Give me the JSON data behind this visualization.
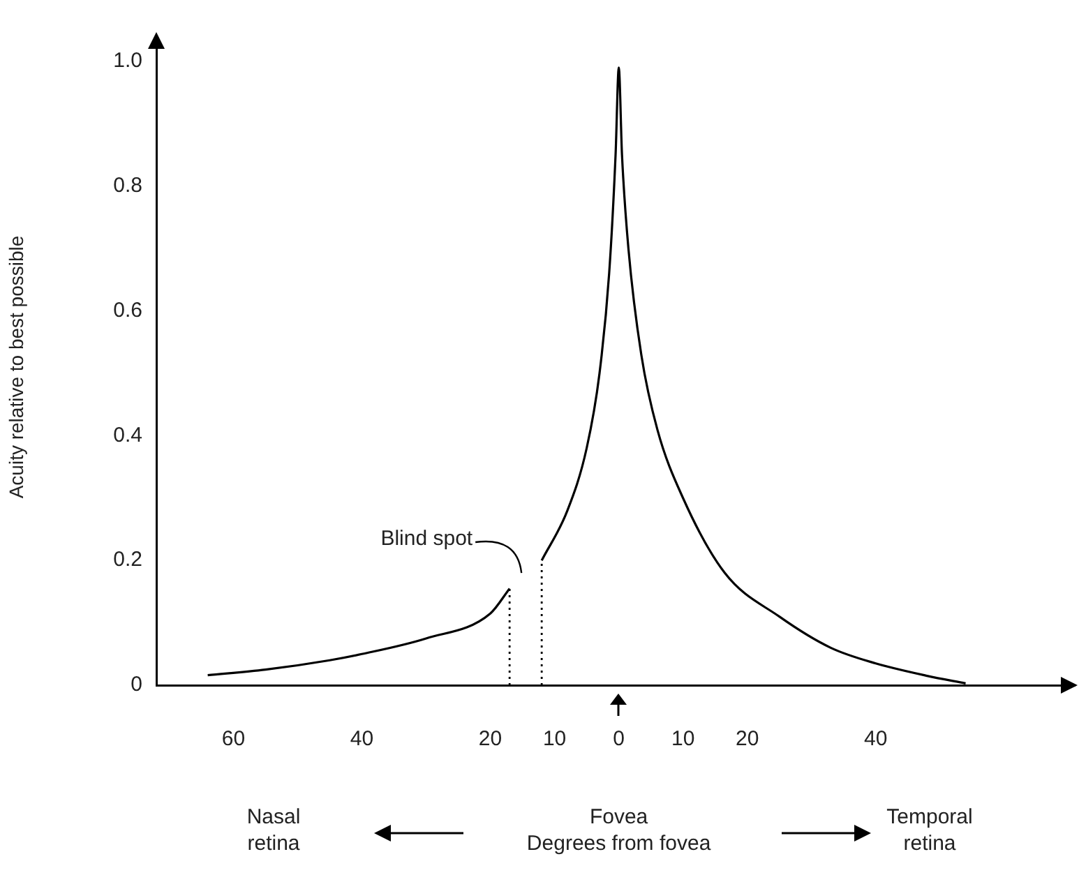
{
  "chart_data": {
    "type": "line",
    "xlabel": "Degrees from fovea",
    "ylabel": "Acuity relative to best possible",
    "xlim": [
      -72,
      71
    ],
    "xticks": [
      {
        "value": -60,
        "label": "60"
      },
      {
        "value": -40,
        "label": "40"
      },
      {
        "value": -20,
        "label": "20"
      },
      {
        "value": -10,
        "label": "10"
      },
      0,
      10,
      20,
      40
    ],
    "ylim": [
      0,
      1.02
    ],
    "yticks": [
      0,
      0.2,
      0.4,
      0.6,
      0.8,
      {
        "value": 1,
        "label": "1.0"
      }
    ],
    "series": [
      {
        "color": "#000000",
        "x": [
          -64,
          -55,
          -45,
          -40,
          -30,
          -20,
          -17
        ],
        "values": [
          0.016,
          0.025,
          0.04,
          0.05,
          0.075,
          0.115,
          0.155
        ]
      },
      {
        "color": "#000000",
        "x": [
          -12,
          -8,
          -5,
          -3,
          -1.5,
          -0.5,
          0,
          0.5,
          1.5,
          3.5,
          6,
          10,
          16.5,
          25,
          33,
          40,
          48,
          54
        ],
        "values": [
          0.2,
          0.28,
          0.38,
          0.5,
          0.66,
          0.85,
          0.99,
          0.85,
          0.7,
          0.53,
          0.41,
          0.3,
          0.18,
          0.11,
          0.06,
          0.035,
          0.015,
          0.003
        ]
      }
    ],
    "ref_lines": [
      {
        "axis": "x",
        "value": -17,
        "line_style": "dotted"
      },
      {
        "axis": "x",
        "value": -12,
        "line_style": "dotted"
      }
    ],
    "annotations": [
      "Blind spot",
      "Nasal\nretina",
      "Temporal\nretina",
      "Fovea"
    ],
    "grid": false,
    "legend": false,
    "marker": "none",
    "line_style": "solid"
  }
}
